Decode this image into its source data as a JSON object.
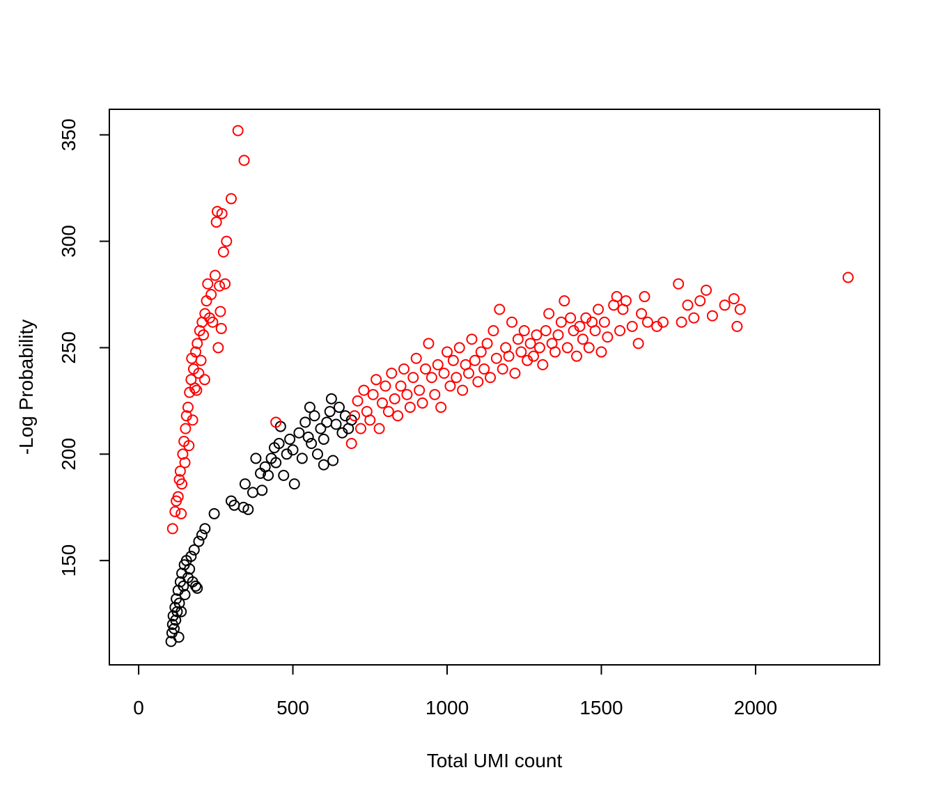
{
  "chart_data": {
    "type": "scatter",
    "xlabel": "Total UMI count",
    "ylabel": "-Log Probability",
    "xlim": [
      -95,
      2402
    ],
    "ylim": [
      101,
      362
    ],
    "xticks": [
      0,
      500,
      1000,
      1500,
      2000
    ],
    "yticks": [
      150,
      200,
      250,
      300,
      350
    ],
    "series": [
      {
        "color": "#000000",
        "x": [
          105,
          108,
          110,
          112,
          115,
          118,
          120,
          122,
          125,
          128,
          130,
          132,
          135,
          138,
          140,
          145,
          148,
          150,
          155,
          160,
          165,
          170,
          175,
          180,
          185,
          190,
          195,
          205,
          215,
          245,
          300,
          310,
          340,
          355,
          345,
          370,
          380,
          395,
          400,
          410,
          420,
          430,
          440,
          445,
          455,
          470,
          480,
          490,
          500,
          505,
          520,
          530,
          540,
          550,
          560,
          570,
          580,
          590,
          600,
          610,
          620,
          625,
          630,
          640,
          650,
          660,
          670,
          680,
          690,
          600,
          555,
          460
        ],
        "values": [
          112,
          116,
          120,
          124,
          118,
          128,
          122,
          132,
          126,
          136,
          114,
          130,
          140,
          126,
          144,
          138,
          148,
          134,
          150,
          142,
          146,
          152,
          140,
          155,
          138,
          137,
          159,
          162,
          165,
          172,
          178,
          176,
          175,
          174,
          186,
          182,
          198,
          191,
          183,
          194,
          190,
          198,
          203,
          196,
          205,
          190,
          200,
          207,
          202,
          186,
          210,
          198,
          215,
          208,
          205,
          218,
          200,
          212,
          207,
          215,
          220,
          226,
          197,
          214,
          222,
          210,
          218,
          212,
          216,
          195,
          222,
          213
        ]
      },
      {
        "color": "#ff0000",
        "x": [
          110,
          118,
          122,
          128,
          132,
          135,
          140,
          138,
          143,
          147,
          150,
          152,
          155,
          160,
          163,
          165,
          170,
          172,
          175,
          178,
          182,
          185,
          190,
          195,
          198,
          202,
          206,
          210,
          215,
          220,
          224,
          230,
          235,
          240,
          248,
          252,
          255,
          262,
          265,
          268,
          275,
          280,
          285,
          300,
          322,
          342,
          270,
          258,
          214,
          188,
          445,
          690,
          700,
          710,
          720,
          730,
          740,
          750,
          760,
          770,
          780,
          790,
          800,
          810,
          820,
          830,
          840,
          850,
          860,
          870,
          880,
          890,
          900,
          910,
          920,
          930,
          940,
          950,
          960,
          970,
          980,
          990,
          1000,
          1010,
          1020,
          1030,
          1040,
          1050,
          1060,
          1070,
          1080,
          1090,
          1100,
          1110,
          1120,
          1130,
          1140,
          1150,
          1160,
          1170,
          1180,
          1190,
          1200,
          1210,
          1220,
          1230,
          1240,
          1250,
          1260,
          1270,
          1280,
          1290,
          1300,
          1310,
          1320,
          1330,
          1340,
          1350,
          1360,
          1370,
          1380,
          1390,
          1400,
          1410,
          1420,
          1430,
          1440,
          1450,
          1460,
          1470,
          1480,
          1490,
          1500,
          1510,
          1520,
          1540,
          1550,
          1560,
          1570,
          1580,
          1600,
          1620,
          1630,
          1640,
          1650,
          1680,
          1700,
          1750,
          1760,
          1780,
          1800,
          1820,
          1840,
          1860,
          1900,
          1930,
          1940,
          1950,
          2300
        ],
        "values": [
          165,
          173,
          178,
          180,
          188,
          192,
          186,
          172,
          200,
          206,
          196,
          212,
          218,
          222,
          204,
          229,
          235,
          245,
          216,
          240,
          231,
          248,
          252,
          238,
          258,
          244,
          262,
          256,
          266,
          272,
          280,
          264,
          275,
          262,
          284,
          309,
          314,
          279,
          267,
          259,
          295,
          280,
          300,
          320,
          352,
          338,
          313,
          250,
          235,
          230,
          215,
          205,
          218,
          225,
          212,
          230,
          220,
          216,
          228,
          235,
          212,
          224,
          232,
          220,
          238,
          226,
          218,
          232,
          240,
          228,
          222,
          236,
          245,
          230,
          224,
          240,
          252,
          236,
          228,
          242,
          222,
          238,
          248,
          232,
          244,
          236,
          250,
          230,
          242,
          238,
          254,
          244,
          234,
          248,
          240,
          252,
          236,
          258,
          245,
          268,
          240,
          250,
          246,
          262,
          238,
          254,
          248,
          258,
          244,
          252,
          246,
          256,
          250,
          242,
          258,
          266,
          252,
          248,
          256,
          262,
          272,
          250,
          264,
          258,
          246,
          260,
          254,
          264,
          250,
          262,
          258,
          268,
          248,
          262,
          255,
          270,
          274,
          258,
          268,
          272,
          260,
          252,
          266,
          274,
          262,
          260,
          262,
          280,
          262,
          270,
          264,
          272,
          277,
          265,
          270,
          273,
          260,
          268,
          283
        ]
      }
    ]
  }
}
